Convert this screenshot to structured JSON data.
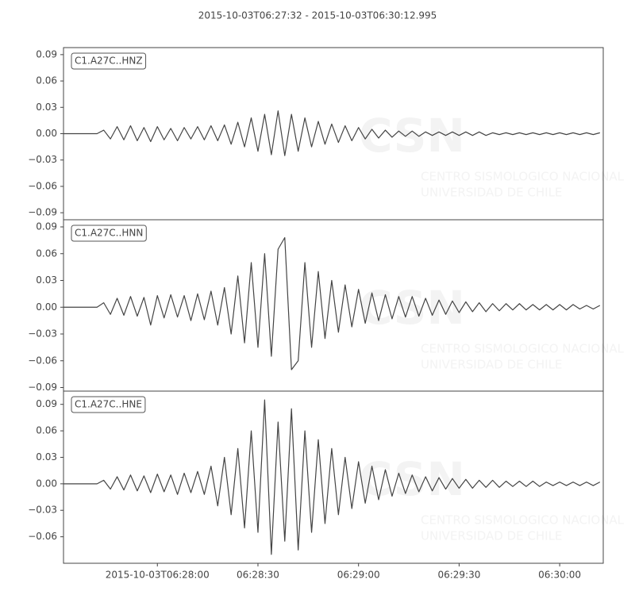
{
  "chart_data": {
    "type": "line",
    "title": "2015-10-03T06:27:32  -  2015-10-03T06:30:12.995",
    "watermark": {
      "logo": "CSN",
      "lines": [
        "CENTRO SISMOLOGICO NACIONAL",
        "UNIVERSIDAD DE CHILE"
      ]
    },
    "xlim": [
      0,
      160.995
    ],
    "xticks": [
      {
        "value": 28,
        "label": "2015-10-03T06:28:00"
      },
      {
        "value": 58,
        "label": "06:28:30"
      },
      {
        "value": 88,
        "label": "06:29:00"
      },
      {
        "value": 118,
        "label": "06:29:30"
      },
      {
        "value": 148,
        "label": "06:30:00"
      }
    ],
    "x": [
      0,
      2,
      4,
      6,
      8,
      10,
      12,
      14,
      16,
      18,
      20,
      22,
      24,
      26,
      28,
      30,
      32,
      34,
      36,
      38,
      40,
      42,
      44,
      46,
      48,
      50,
      52,
      54,
      56,
      58,
      60,
      62,
      64,
      66,
      68,
      70,
      72,
      74,
      76,
      78,
      80,
      82,
      84,
      86,
      88,
      90,
      92,
      94,
      96,
      98,
      100,
      102,
      104,
      106,
      108,
      110,
      112,
      114,
      116,
      118,
      120,
      122,
      124,
      126,
      128,
      130,
      132,
      134,
      136,
      138,
      140,
      142,
      144,
      146,
      148,
      150,
      152,
      154,
      156,
      158,
      160
    ],
    "series": [
      {
        "name": "C1.A27C..HNZ",
        "color": "#444444",
        "ylim": [
          -0.098,
          0.098
        ],
        "yticks": [
          0.09,
          0.06,
          0.03,
          {
            "value": 0,
            "label": "0.00"
          },
          {
            "value": -0.03,
            "label": "−0.03"
          },
          {
            "value": -0.06,
            "label": "−0.06"
          },
          {
            "value": -0.09,
            "label": "−0.09"
          }
        ],
        "values": [
          0,
          0,
          0,
          0,
          0,
          0,
          0.004,
          -0.006,
          0.008,
          -0.007,
          0.009,
          -0.008,
          0.007,
          -0.009,
          0.008,
          -0.007,
          0.006,
          -0.008,
          0.007,
          -0.006,
          0.008,
          -0.007,
          0.009,
          -0.008,
          0.01,
          -0.012,
          0.013,
          -0.015,
          0.018,
          -0.02,
          0.022,
          -0.024,
          0.026,
          -0.025,
          0.022,
          -0.02,
          0.018,
          -0.015,
          0.014,
          -0.012,
          0.011,
          -0.01,
          0.009,
          -0.008,
          0.007,
          -0.006,
          0.005,
          -0.005,
          0.004,
          -0.004,
          0.003,
          -0.003,
          0.003,
          -0.003,
          0.002,
          -0.002,
          0.002,
          -0.002,
          0.002,
          -0.002,
          0.002,
          -0.002,
          0.002,
          -0.002,
          0.001,
          -0.001,
          0.001,
          -0.001,
          0.001,
          -0.001,
          0.001,
          -0.001,
          0.001,
          -0.001,
          0.001,
          -0.001,
          0.001,
          -0.001,
          0.001,
          -0.001,
          0.001
        ]
      },
      {
        "name": "C1.A27C..HNN",
        "color": "#444444",
        "ylim": [
          -0.094,
          0.098
        ],
        "yticks": [
          0.09,
          0.06,
          0.03,
          {
            "value": 0,
            "label": "0.00"
          },
          {
            "value": -0.03,
            "label": "−0.03"
          },
          {
            "value": -0.06,
            "label": "−0.06"
          },
          {
            "value": -0.09,
            "label": "−0.09"
          }
        ],
        "values": [
          0,
          0,
          0,
          0,
          0,
          0,
          0.005,
          -0.008,
          0.01,
          -0.009,
          0.012,
          -0.01,
          0.011,
          -0.02,
          0.013,
          -0.012,
          0.014,
          -0.011,
          0.013,
          -0.015,
          0.015,
          -0.014,
          0.018,
          -0.02,
          0.022,
          -0.03,
          0.035,
          -0.04,
          0.05,
          -0.045,
          0.06,
          -0.055,
          0.065,
          0.078,
          -0.07,
          -0.06,
          0.05,
          -0.045,
          0.04,
          -0.035,
          0.03,
          -0.028,
          0.025,
          -0.022,
          0.02,
          -0.018,
          0.016,
          -0.015,
          0.014,
          -0.013,
          0.012,
          -0.011,
          0.012,
          -0.01,
          0.01,
          -0.009,
          0.008,
          -0.008,
          0.007,
          -0.006,
          0.006,
          -0.005,
          0.005,
          -0.005,
          0.004,
          -0.004,
          0.004,
          -0.003,
          0.004,
          -0.003,
          0.003,
          -0.003,
          0.003,
          -0.003,
          0.003,
          -0.003,
          0.003,
          -0.002,
          0.002,
          -0.002,
          0.002
        ]
      },
      {
        "name": "C1.A27C..HNE",
        "color": "#444444",
        "ylim": [
          -0.09,
          0.105
        ],
        "yticks": [
          0.09,
          0.06,
          0.03,
          {
            "value": 0,
            "label": "0.00"
          },
          {
            "value": -0.03,
            "label": "−0.03"
          },
          {
            "value": -0.06,
            "label": "−0.06"
          }
        ],
        "values": [
          0,
          0,
          0,
          0,
          0,
          0,
          0.004,
          -0.006,
          0.008,
          -0.007,
          0.01,
          -0.008,
          0.009,
          -0.01,
          0.011,
          -0.009,
          0.01,
          -0.012,
          0.012,
          -0.01,
          0.014,
          -0.012,
          0.02,
          -0.025,
          0.03,
          -0.035,
          0.04,
          -0.05,
          0.06,
          -0.055,
          0.095,
          -0.08,
          0.07,
          -0.065,
          0.085,
          -0.075,
          0.06,
          -0.055,
          0.05,
          -0.045,
          0.04,
          -0.035,
          0.03,
          -0.028,
          0.025,
          -0.022,
          0.02,
          -0.018,
          0.016,
          -0.014,
          0.012,
          -0.011,
          0.01,
          -0.009,
          0.008,
          -0.008,
          0.007,
          -0.006,
          0.006,
          -0.005,
          0.005,
          -0.005,
          0.004,
          -0.004,
          0.004,
          -0.004,
          0.003,
          -0.003,
          0.003,
          -0.003,
          0.003,
          -0.003,
          0.002,
          -0.002,
          0.002,
          -0.002,
          0.002,
          -0.002,
          0.002,
          -0.002,
          0.002
        ]
      }
    ]
  }
}
